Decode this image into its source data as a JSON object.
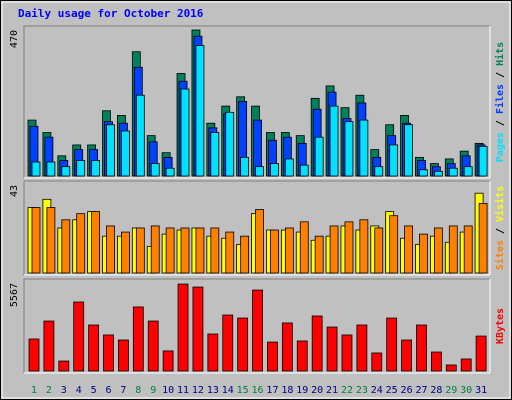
{
  "chart_data": [
    {
      "type": "bar",
      "title": "Daily usage for October 2016",
      "categories": [
        "1",
        "2",
        "3",
        "4",
        "5",
        "6",
        "7",
        "8",
        "9",
        "10",
        "11",
        "12",
        "13",
        "14",
        "15",
        "16",
        "17",
        "18",
        "19",
        "20",
        "21",
        "22",
        "23",
        "24",
        "25",
        "26",
        "27",
        "28",
        "29",
        "30",
        "31"
      ],
      "category_colors": [
        "#008040",
        "#008040",
        "#000080",
        "#000080",
        "#000080",
        "#000080",
        "#000080",
        "#008040",
        "#008040",
        "#000080",
        "#000080",
        "#000080",
        "#000080",
        "#000080",
        "#008040",
        "#008040",
        "#000080",
        "#000080",
        "#000080",
        "#000080",
        "#000080",
        "#008040",
        "#008040",
        "#000080",
        "#000080",
        "#000080",
        "#000080",
        "#000080",
        "#008040",
        "#008040",
        "#000080"
      ],
      "legend_separator": " / ",
      "ylim": [
        0,
        470
      ],
      "yticks": [
        470
      ],
      "series": [
        {
          "name": "Hits",
          "color": "#00805c",
          "values": [
            180,
            140,
            65,
            100,
            100,
            210,
            195,
            400,
            130,
            75,
            330,
            470,
            170,
            225,
            255,
            225,
            140,
            140,
            130,
            250,
            290,
            220,
            260,
            85,
            165,
            195,
            60,
            40,
            55,
            80,
            105
          ]
        },
        {
          "name": "Files",
          "color": "#0040ff",
          "values": [
            160,
            125,
            50,
            85,
            85,
            175,
            170,
            350,
            110,
            60,
            305,
            450,
            155,
            200,
            240,
            180,
            115,
            125,
            105,
            215,
            270,
            185,
            235,
            60,
            130,
            170,
            50,
            30,
            40,
            65,
            100
          ]
        },
        {
          "name": "Pages",
          "color": "#00e0ff",
          "values": [
            45,
            45,
            30,
            50,
            50,
            165,
            145,
            260,
            40,
            25,
            280,
            420,
            140,
            205,
            60,
            30,
            40,
            55,
            35,
            125,
            225,
            175,
            180,
            30,
            100,
            165,
            20,
            15,
            25,
            30,
            95
          ]
        }
      ]
    },
    {
      "type": "bar",
      "ylim": [
        0,
        43
      ],
      "yticks": [
        43
      ],
      "series": [
        {
          "name": "Visits",
          "color": "#ffff00",
          "values": [
            32,
            36,
            22,
            26,
            30,
            18,
            18,
            22,
            13,
            19,
            21,
            22,
            18,
            17,
            14,
            29,
            21,
            21,
            20,
            16,
            18,
            23,
            21,
            23,
            30,
            17,
            14,
            18,
            15,
            20,
            39
          ]
        },
        {
          "name": "Sites",
          "color": "#ff8000",
          "values": [
            32,
            32,
            26,
            29,
            30,
            23,
            20,
            22,
            23,
            22,
            22,
            22,
            22,
            20,
            18,
            31,
            21,
            22,
            25,
            18,
            23,
            25,
            26,
            22,
            28,
            23,
            19,
            22,
            23,
            23,
            34
          ]
        }
      ]
    },
    {
      "type": "bar",
      "ylim": [
        0,
        5567
      ],
      "yticks": [
        5567
      ],
      "series": [
        {
          "name": "KBytes",
          "color": "#ff0000",
          "values": [
            2025,
            3160,
            630,
            4365,
            2910,
            2280,
            1960,
            4050,
            3160,
            1270,
            5500,
            5310,
            2340,
            3540,
            3350,
            5120,
            1830,
            3040,
            1900,
            3480,
            2780,
            2280,
            2910,
            1140,
            3350,
            1960,
            2910,
            1200,
            380,
            760,
            2210
          ]
        }
      ]
    }
  ]
}
